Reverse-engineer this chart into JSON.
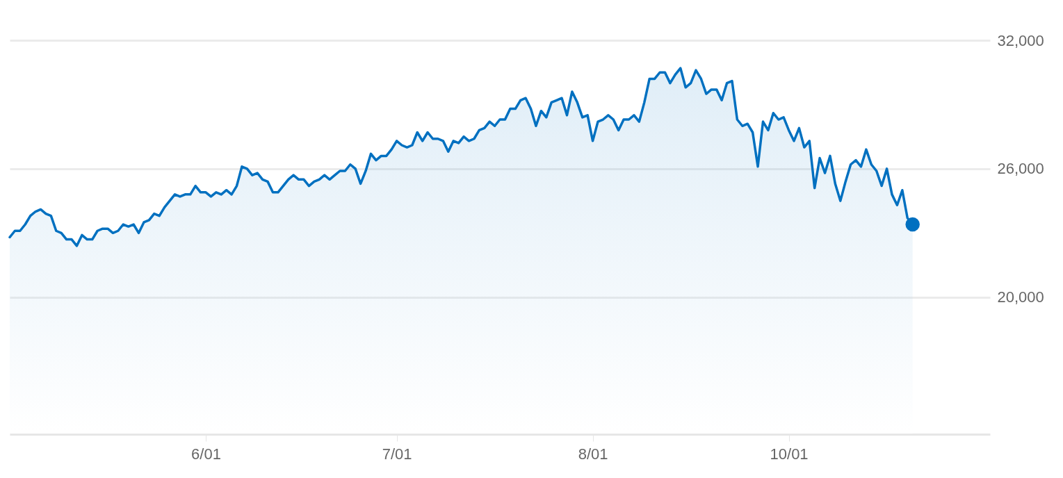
{
  "chart_data": {
    "type": "area",
    "ylim": [
      13600,
      32000
    ],
    "yticks": [
      {
        "value": 20000,
        "label": "20,000"
      },
      {
        "value": 26000,
        "label": "26,000"
      },
      {
        "value": 32000,
        "label": "32,000"
      }
    ],
    "grid": "y",
    "line_style": "solid",
    "categories": [
      null,
      null,
      null,
      null,
      null,
      null,
      null,
      null,
      null,
      null,
      null,
      null,
      null,
      null,
      null,
      null,
      null,
      null,
      null,
      null,
      null,
      null,
      null,
      null,
      null,
      null,
      null,
      null,
      null,
      null,
      null,
      null,
      null,
      null,
      null,
      null,
      null,
      null,
      "6/01",
      null,
      null,
      null,
      null,
      null,
      null,
      null,
      null,
      null,
      null,
      null,
      null,
      null,
      null,
      null,
      null,
      null,
      null,
      null,
      null,
      null,
      null,
      null,
      null,
      null,
      null,
      null,
      null,
      null,
      null,
      null,
      null,
      null,
      null,
      null,
      null,
      "7/01",
      null,
      null,
      null,
      null,
      null,
      null,
      null,
      null,
      null,
      null,
      null,
      null,
      null,
      null,
      null,
      null,
      null,
      null,
      null,
      null,
      null,
      null,
      null,
      null,
      null,
      null,
      null,
      null,
      null,
      null,
      null,
      null,
      null,
      null,
      null,
      null,
      null,
      "8/01",
      null,
      null,
      null,
      null,
      null,
      null,
      null,
      null,
      null,
      null,
      null,
      null,
      null,
      null,
      null,
      null,
      null,
      null,
      null,
      null,
      null,
      null,
      null,
      null,
      null,
      null,
      null,
      null,
      null,
      null,
      null,
      null,
      null,
      null,
      null,
      null,
      null,
      "10/01",
      null,
      null,
      null,
      null,
      null,
      null,
      null,
      null,
      null,
      null,
      null,
      null,
      null,
      null,
      null,
      null,
      null,
      null,
      null,
      null,
      null,
      null,
      null,
      null,
      null,
      null,
      null,
      null,
      null,
      null,
      null,
      null,
      null,
      null,
      null,
      null,
      null,
      null,
      null
    ],
    "series": [
      {
        "color": "#0070c0",
        "values": [
          22800,
          23100,
          23100,
          23400,
          23800,
          24000,
          24100,
          23900,
          23800,
          23100,
          23000,
          22700,
          22700,
          22400,
          22900,
          22700,
          22700,
          23100,
          23200,
          23200,
          23000,
          23100,
          23400,
          23300,
          23400,
          23000,
          23500,
          23600,
          23900,
          23800,
          24200,
          24500,
          24800,
          24700,
          24800,
          24800,
          25200,
          24900,
          24900,
          24700,
          24900,
          24800,
          25000,
          24800,
          25200,
          26100,
          26000,
          25700,
          25800,
          25500,
          25400,
          24900,
          24900,
          25200,
          25500,
          25700,
          25500,
          25500,
          25200,
          25400,
          25500,
          25700,
          25500,
          25700,
          25900,
          25900,
          26200,
          26000,
          25300,
          25900,
          26700,
          26400,
          26600,
          26600,
          26900,
          27300,
          27100,
          27000,
          27100,
          27700,
          27300,
          27700,
          27400,
          27400,
          27300,
          26800,
          27300,
          27200,
          27500,
          27300,
          27400,
          27800,
          27900,
          28200,
          28000,
          28300,
          28300,
          28800,
          28800,
          29200,
          29300,
          28800,
          28000,
          28700,
          28400,
          29100,
          29200,
          29300,
          28500,
          29600,
          29100,
          28400,
          28500,
          27300,
          28200,
          28300,
          28500,
          28300,
          27800,
          28300,
          28300,
          28500,
          28200,
          29100,
          30200,
          30200,
          30500,
          30500,
          30000,
          30400,
          30700,
          29800,
          30000,
          30600,
          30200,
          29500,
          29700,
          29700,
          29200,
          30000,
          30100,
          28300,
          28000,
          28100,
          27700,
          26100,
          28200,
          27800,
          28600,
          28300,
          28400,
          27800,
          27300,
          27900,
          27000,
          27300,
          25100,
          26500,
          25800,
          26600,
          25300,
          24500,
          25400,
          26200,
          26400,
          26100,
          26900,
          26200,
          25900,
          25200,
          26000,
          24800,
          24300,
          25000,
          23700,
          23400,
          null,
          null,
          null,
          null,
          null,
          null,
          null,
          null,
          null,
          null,
          null,
          null,
          null,
          null,
          null
        ]
      },
      {
        "type": "scatter",
        "color": "#0070c0",
        "marker": "circle",
        "values": [
          null,
          null,
          null,
          null,
          null,
          null,
          null,
          null,
          null,
          null,
          null,
          null,
          null,
          null,
          null,
          null,
          null,
          null,
          null,
          null,
          null,
          null,
          null,
          null,
          null,
          null,
          null,
          null,
          null,
          null,
          null,
          null,
          null,
          null,
          null,
          null,
          null,
          null,
          null,
          null,
          null,
          null,
          null,
          null,
          null,
          null,
          null,
          null,
          null,
          null,
          null,
          null,
          null,
          null,
          null,
          null,
          null,
          null,
          null,
          null,
          null,
          null,
          null,
          null,
          null,
          null,
          null,
          null,
          null,
          null,
          null,
          null,
          null,
          null,
          null,
          null,
          null,
          null,
          null,
          null,
          null,
          null,
          null,
          null,
          null,
          null,
          null,
          null,
          null,
          null,
          null,
          null,
          null,
          null,
          null,
          null,
          null,
          null,
          null,
          null,
          null,
          null,
          null,
          null,
          null,
          null,
          null,
          null,
          null,
          null,
          null,
          null,
          null,
          null,
          null,
          null,
          null,
          null,
          null,
          null,
          null,
          null,
          null,
          null,
          null,
          null,
          null,
          null,
          null,
          null,
          null,
          null,
          null,
          null,
          null,
          null,
          null,
          null,
          null,
          null,
          null,
          null,
          null,
          null,
          null,
          null,
          null,
          null,
          null,
          null,
          null,
          null,
          null,
          null,
          null,
          null,
          null,
          null,
          null,
          null,
          null,
          null,
          null,
          null,
          null,
          null,
          null,
          null,
          null,
          null,
          null,
          null,
          null,
          null,
          null,
          23400,
          null,
          null,
          null,
          null,
          null,
          null,
          null,
          null,
          null,
          null,
          null,
          null,
          null,
          null,
          null
        ]
      }
    ]
  }
}
